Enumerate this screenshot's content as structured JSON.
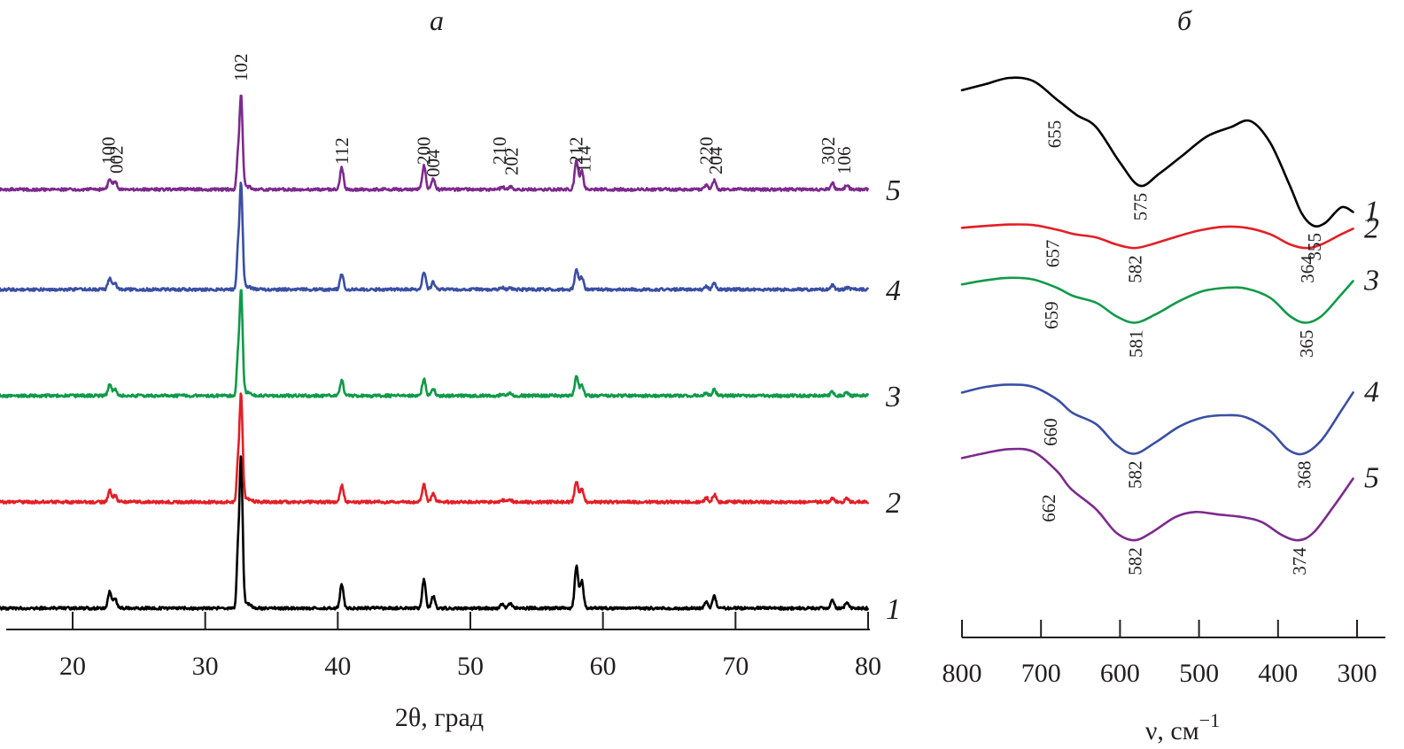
{
  "chart_data": [
    {
      "type": "line",
      "panel_label": "a",
      "title": "",
      "xlabel": "2θ, град",
      "ylabel": "",
      "xlim": [
        15,
        80
      ],
      "xticks": [
        20,
        30,
        40,
        50,
        60,
        70,
        80
      ],
      "xtick_labels": [
        "20",
        "30",
        "40",
        "50",
        "60",
        "70",
        "80"
      ],
      "grid": false,
      "legend": "series numbers at right end of each curve",
      "peak_positions": [
        22.8,
        23.2,
        32.7,
        40.3,
        46.5,
        47.2,
        52.4,
        53.0,
        58.0,
        58.4,
        67.8,
        68.4,
        77.3,
        78.4
      ],
      "peak_labels": [
        {
          "hkl": "100",
          "x": 22.7
        },
        {
          "hkl": "002",
          "x": 23.3
        },
        {
          "hkl": "102",
          "x": 32.7
        },
        {
          "hkl": "112",
          "x": 40.3
        },
        {
          "hkl": "200",
          "x": 46.5
        },
        {
          "hkl": "004",
          "x": 47.2
        },
        {
          "hkl": "210",
          "x": 52.2
        },
        {
          "hkl": "202",
          "x": 53.1
        },
        {
          "hkl": "212",
          "x": 58.0
        },
        {
          "hkl": "114",
          "x": 58.6
        },
        {
          "hkl": "220",
          "x": 67.8
        },
        {
          "hkl": "204",
          "x": 68.5
        },
        {
          "hkl": "302",
          "x": 77.0
        },
        {
          "hkl": "106",
          "x": 78.2
        }
      ],
      "series": [
        {
          "name": "1",
          "color": "#000000",
          "relative_intensities": [
            0.11,
            0.07,
            1.0,
            0.16,
            0.19,
            0.08,
            0.03,
            0.03,
            0.28,
            0.18,
            0.04,
            0.08,
            0.06,
            0.04
          ]
        },
        {
          "name": "2",
          "color": "#e41e26",
          "relative_intensities": [
            0.11,
            0.06,
            1.0,
            0.16,
            0.17,
            0.08,
            0.02,
            0.02,
            0.19,
            0.12,
            0.04,
            0.07,
            0.04,
            0.03
          ]
        },
        {
          "name": "3",
          "color": "#0f9a48",
          "relative_intensities": [
            0.11,
            0.06,
            1.0,
            0.15,
            0.16,
            0.07,
            0.02,
            0.02,
            0.18,
            0.11,
            0.03,
            0.06,
            0.04,
            0.03
          ]
        },
        {
          "name": "4",
          "color": "#3a4fa3",
          "relative_intensities": [
            0.11,
            0.06,
            1.0,
            0.15,
            0.17,
            0.07,
            0.02,
            0.02,
            0.2,
            0.12,
            0.03,
            0.06,
            0.04,
            0.02
          ]
        },
        {
          "name": "5",
          "color": "#7c2a8d",
          "relative_intensities": [
            0.12,
            0.09,
            1.0,
            0.24,
            0.25,
            0.12,
            0.03,
            0.03,
            0.31,
            0.2,
            0.05,
            0.1,
            0.07,
            0.05
          ]
        }
      ]
    },
    {
      "type": "line",
      "panel_label": "б",
      "title": "",
      "xlabel": "ν, см",
      "xlabel_superscript": "−1",
      "ylabel": "",
      "xlim": [
        800,
        300
      ],
      "xticks": [
        800,
        700,
        600,
        500,
        400,
        300
      ],
      "xtick_labels": [
        "800",
        "700",
        "600",
        "500",
        "400",
        "300"
      ],
      "grid": false,
      "legend": "series numbers at right end of each curve",
      "series": [
        {
          "name": "1",
          "color": "#000000",
          "annotations": [
            "655",
            "575",
            "355"
          ],
          "x": [
            800,
            770,
            740,
            710,
            680,
            655,
            630,
            600,
            575,
            550,
            520,
            490,
            460,
            435,
            410,
            385,
            370,
            355,
            340,
            320,
            305
          ],
          "y": [
            0.92,
            0.96,
            1.0,
            0.98,
            0.86,
            0.76,
            0.68,
            0.45,
            0.3,
            0.38,
            0.5,
            0.62,
            0.68,
            0.72,
            0.58,
            0.3,
            0.12,
            0.04,
            0.06,
            0.16,
            0.13
          ]
        },
        {
          "name": "2",
          "color": "#e41e26",
          "annotations": [
            "657",
            "582",
            "364"
          ],
          "x": [
            800,
            770,
            740,
            710,
            680,
            657,
            630,
            605,
            582,
            560,
            530,
            500,
            470,
            440,
            410,
            385,
            364,
            345,
            320,
            305
          ],
          "y": [
            0.86,
            0.9,
            0.93,
            0.92,
            0.82,
            0.72,
            0.65,
            0.5,
            0.42,
            0.5,
            0.66,
            0.8,
            0.88,
            0.86,
            0.72,
            0.5,
            0.42,
            0.5,
            0.72,
            0.84
          ]
        },
        {
          "name": "3",
          "color": "#0f9a48",
          "annotations": [
            "659",
            "581",
            "365"
          ],
          "x": [
            800,
            770,
            740,
            710,
            680,
            659,
            630,
            605,
            581,
            555,
            525,
            495,
            465,
            440,
            410,
            385,
            365,
            345,
            320,
            305
          ],
          "y": [
            0.88,
            0.93,
            0.96,
            0.94,
            0.84,
            0.74,
            0.66,
            0.5,
            0.42,
            0.52,
            0.68,
            0.8,
            0.84,
            0.83,
            0.72,
            0.5,
            0.42,
            0.5,
            0.76,
            0.92
          ]
        },
        {
          "name": "4",
          "color": "#3a4fa3",
          "annotations": [
            "660",
            "582",
            "368"
          ],
          "x": [
            800,
            770,
            740,
            710,
            680,
            660,
            630,
            605,
            582,
            555,
            525,
            495,
            465,
            440,
            410,
            388,
            368,
            345,
            320,
            305
          ],
          "y": [
            0.88,
            0.93,
            0.95,
            0.93,
            0.82,
            0.7,
            0.6,
            0.42,
            0.34,
            0.44,
            0.58,
            0.66,
            0.68,
            0.66,
            0.54,
            0.38,
            0.34,
            0.46,
            0.72,
            0.88
          ]
        },
        {
          "name": "5",
          "color": "#7c2a8d",
          "annotations": [
            "662",
            "582",
            "374"
          ],
          "x": [
            800,
            770,
            740,
            710,
            680,
            662,
            630,
            605,
            582,
            560,
            530,
            505,
            475,
            445,
            420,
            395,
            374,
            355,
            330,
            305
          ],
          "y": [
            0.88,
            0.92,
            0.95,
            0.93,
            0.78,
            0.64,
            0.48,
            0.3,
            0.24,
            0.3,
            0.42,
            0.46,
            0.44,
            0.42,
            0.38,
            0.28,
            0.24,
            0.3,
            0.5,
            0.72
          ]
        }
      ]
    }
  ]
}
